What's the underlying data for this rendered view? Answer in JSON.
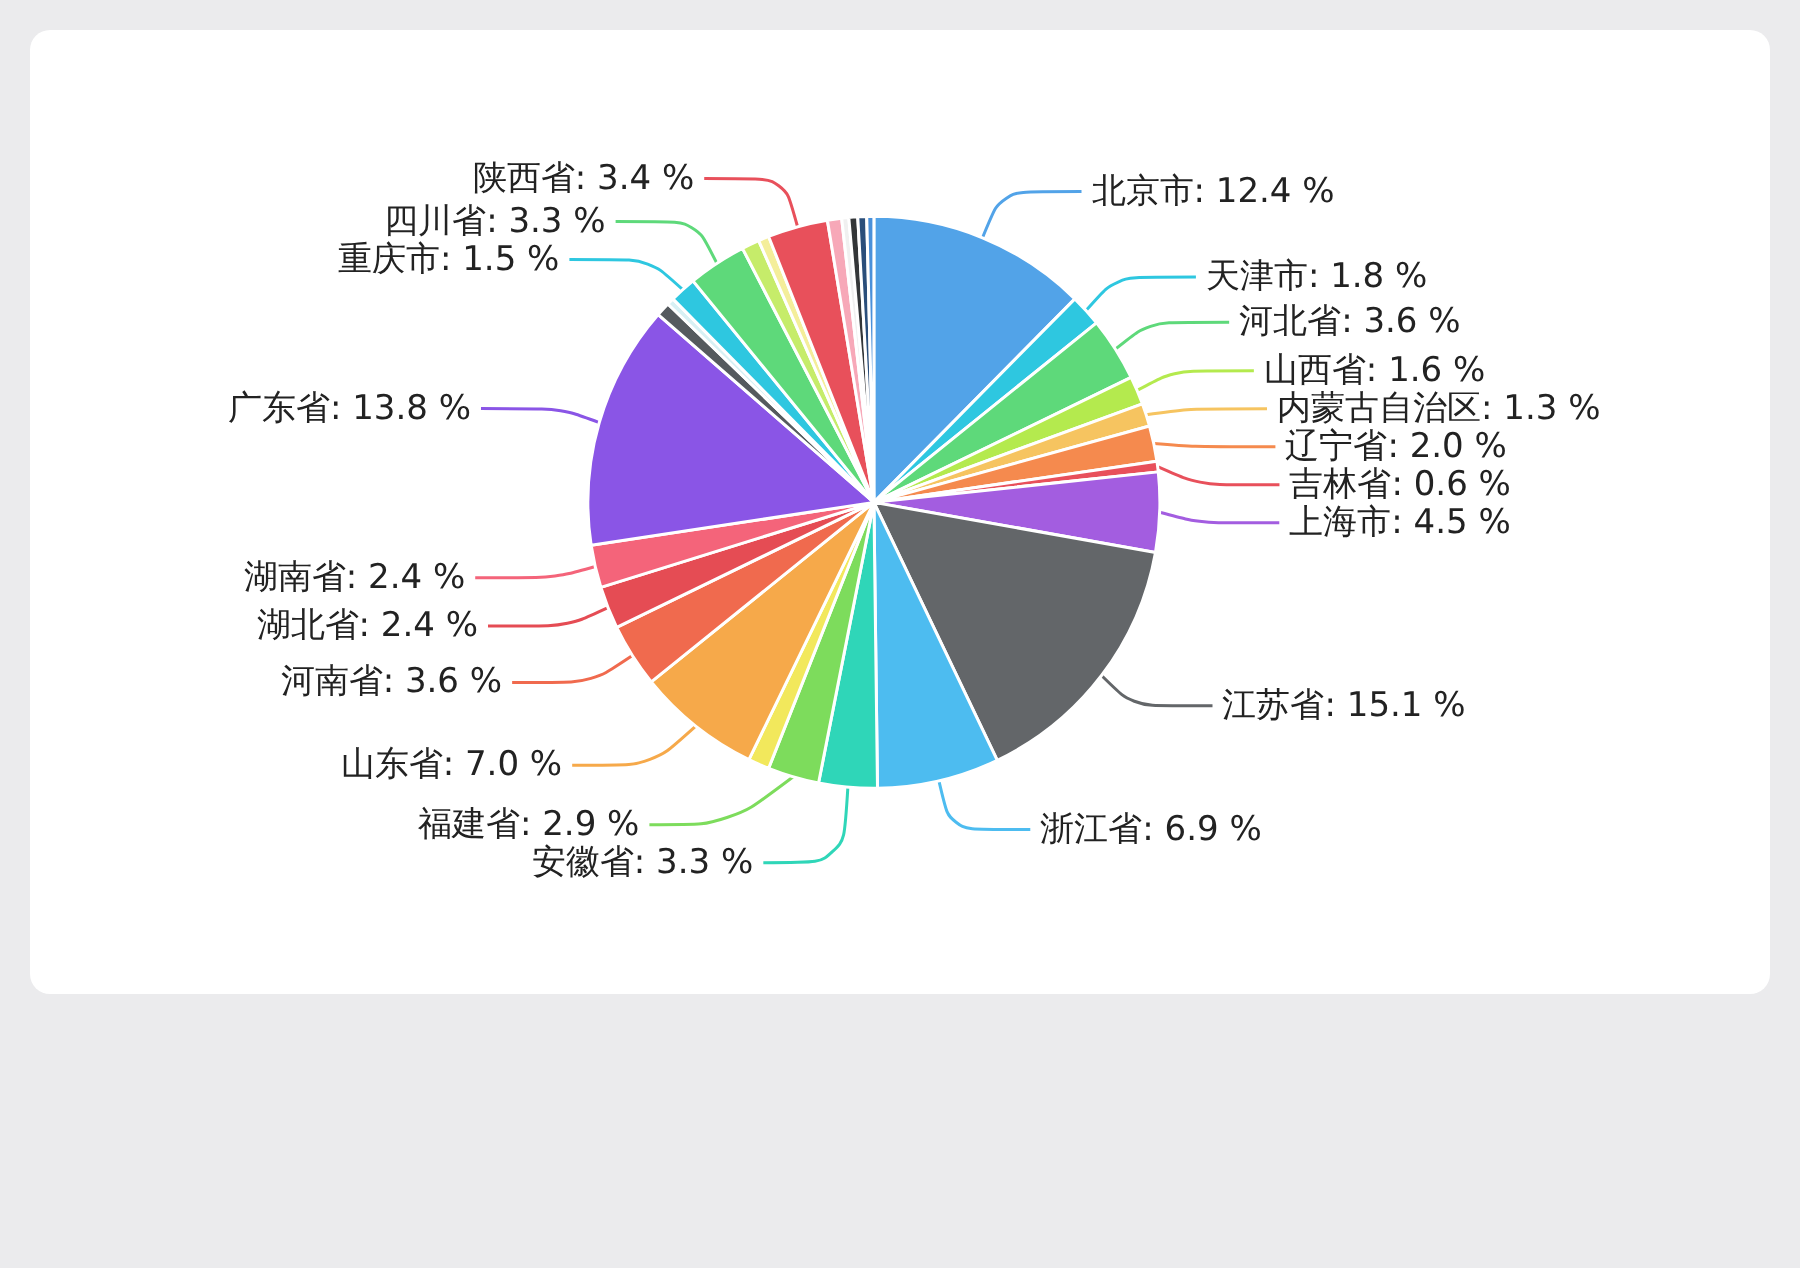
{
  "chart_data": {
    "type": "pie",
    "categories": [
      "北京市",
      "天津市",
      "河北省",
      "山西省",
      "内蒙古自治区",
      "辽宁省",
      "吉林省",
      "上海市",
      "江苏省",
      "浙江省",
      "安徽省",
      "福建省",
      null,
      "山东省",
      "河南省",
      "湖北省",
      "湖南省",
      "广东省",
      null,
      null,
      "重庆市",
      "四川省",
      null,
      null,
      "陕西省",
      null,
      null,
      null,
      null,
      null
    ],
    "values": [
      12.4,
      1.8,
      3.6,
      1.6,
      1.3,
      2.0,
      0.6,
      4.5,
      15.1,
      6.9,
      3.3,
      2.9,
      1.2,
      7.0,
      3.6,
      2.4,
      2.4,
      13.8,
      0.8,
      0.4,
      1.5,
      3.3,
      1.0,
      0.6,
      3.4,
      0.8,
      0.4,
      0.5,
      0.5,
      0.4
    ],
    "value_labels": [
      "12.4 %",
      "1.8 %",
      "3.6 %",
      "1.6 %",
      "1.3 %",
      "2.0 %",
      "0.6 %",
      "4.5 %",
      "15.1 %",
      "6.9 %",
      "3.3 %",
      "2.9 %",
      null,
      "7.0 %",
      "3.6 %",
      "2.4 %",
      "2.4 %",
      "13.8 %",
      null,
      null,
      "1.5 %",
      "3.3 %",
      null,
      null,
      "3.4 %",
      null,
      null,
      null,
      null,
      null
    ],
    "colors": [
      "#52a3e8",
      "#2ec7e0",
      "#5ed97a",
      "#b4ea4e",
      "#f6c460",
      "#f58a4e",
      "#e8505b",
      "#a35de0",
      "#636669",
      "#4dbcf0",
      "#2fd6b8",
      "#7ddc5c",
      "#f2e85c",
      "#f6a94a",
      "#f06a4e",
      "#e54c54",
      "#f4647a",
      "#8a55e6",
      "#555a5e",
      "#d8f0f4",
      "#2ec7e0",
      "#5ed97a",
      "#c6ec6a",
      "#f4ee9a",
      "#e8505b",
      "#f7a8b8",
      "#f0f0f0",
      "#333638",
      "#2a4e7a",
      "#4a90d9"
    ],
    "legend": false
  }
}
